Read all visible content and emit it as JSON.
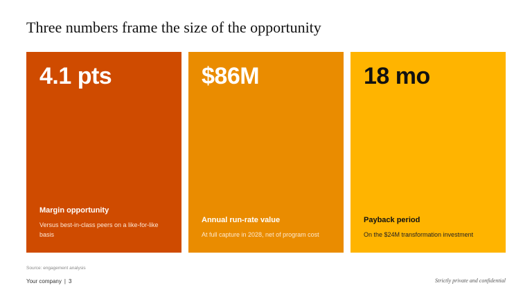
{
  "title": "Three numbers frame the size of the opportunity",
  "cards": [
    {
      "metric": "4.1 pts",
      "label": "Margin opportunity",
      "description": "Versus best-in-class peers on a like-for-like basis",
      "color": "#cf4b00"
    },
    {
      "metric": "$86M",
      "label": "Annual run-rate value",
      "description": "At full capture in 2028, net of program cost",
      "color": "#ea8c00"
    },
    {
      "metric": "18 mo",
      "label": "Payback period",
      "description": "On the $24M transformation investment",
      "color": "#ffb400"
    }
  ],
  "source": "Source: engagement analysis",
  "footer": {
    "company": "Your company",
    "separator": "|",
    "page_number": "3",
    "confidentiality": "Strictly private and confidential"
  }
}
